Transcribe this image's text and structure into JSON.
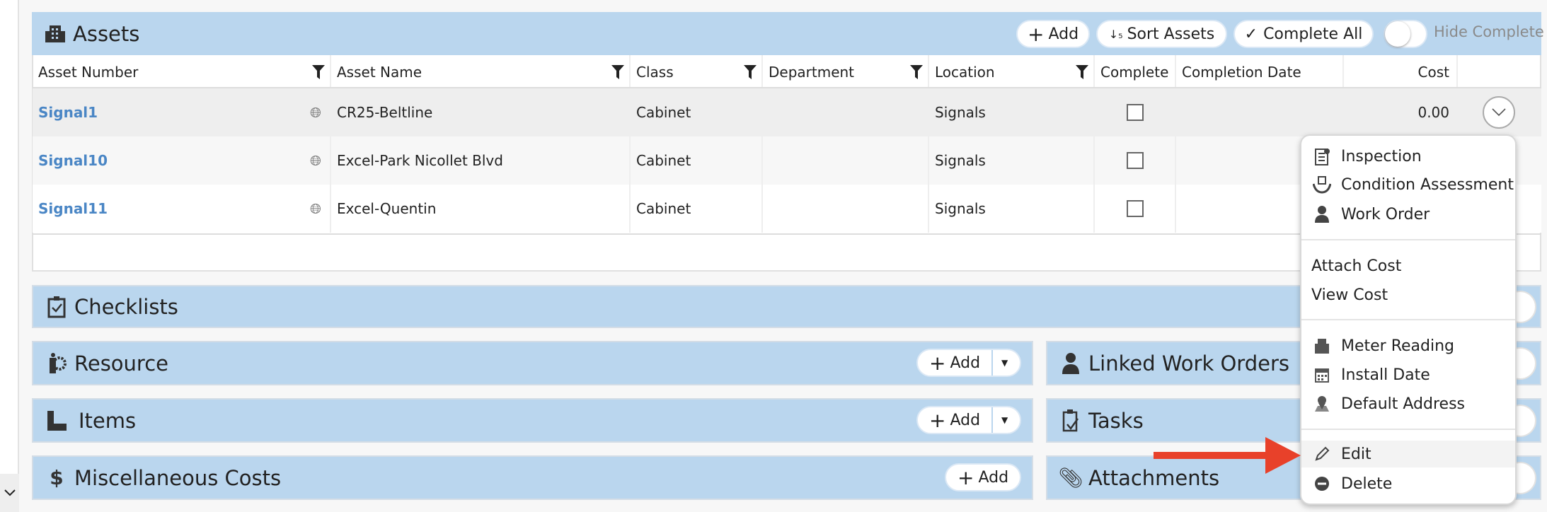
{
  "assets": {
    "title": "Assets",
    "add_label": "Add",
    "sort_label": "Sort Assets",
    "complete_all_label": "Complete All",
    "hide_complete_label": "Hide Complete",
    "hide_complete_on": false,
    "columns": [
      "Asset Number",
      "Asset Name",
      "Class",
      "Department",
      "Location",
      "Complete",
      "Completion Date",
      "Cost"
    ],
    "rows": [
      {
        "number": "Signal1",
        "name": "CR25-Beltline",
        "class": "Cabinet",
        "department": "",
        "location": "Signals",
        "complete": false,
        "completion_date": "",
        "cost": "0.00"
      },
      {
        "number": "Signal10",
        "name": "Excel-Park Nicollet Blvd",
        "class": "Cabinet",
        "department": "",
        "location": "Signals",
        "complete": false,
        "completion_date": "",
        "cost": ""
      },
      {
        "number": "Signal11",
        "name": "Excel-Quentin",
        "class": "Cabinet",
        "department": "",
        "location": "Signals",
        "complete": false,
        "completion_date": "",
        "cost": ""
      }
    ]
  },
  "sections": {
    "checklists": "Checklists",
    "resource": "Resource",
    "items": "Items",
    "misc_costs": "Miscellaneous Costs",
    "linked_work_orders": "Linked Work Orders",
    "tasks": "Tasks",
    "attachments": "Attachments",
    "add_label": "Add"
  },
  "menu": {
    "items": [
      "Inspection",
      "Condition Assessment",
      "Work Order",
      "Attach Cost",
      "View Cost",
      "Meter Reading",
      "Install Date",
      "Default Address",
      "Edit",
      "Delete"
    ],
    "highlighted": "Edit"
  },
  "colors": {
    "band": "#bad6ee",
    "link": "#4a86c5",
    "arrow": "#e8412a"
  }
}
